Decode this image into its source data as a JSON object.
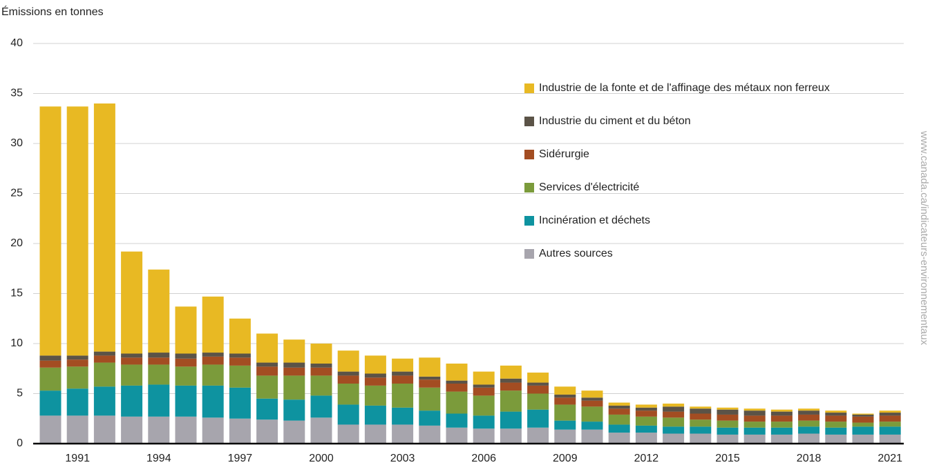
{
  "chart_data": {
    "type": "stacked_bar",
    "y_label": "Émissions en tonnes",
    "source": "www.canada.ca/indicateurs-environnementaux",
    "categories": [
      null,
      "1991",
      null,
      null,
      "1994",
      null,
      null,
      "1997",
      null,
      null,
      "2000",
      null,
      null,
      "2003",
      null,
      null,
      "2006",
      null,
      null,
      "2009",
      null,
      null,
      "2012",
      null,
      null,
      "2015",
      null,
      null,
      "2018",
      null,
      null,
      "2021"
    ],
    "ylim": [
      0,
      40
    ],
    "yticks": [
      0,
      5,
      10,
      15,
      20,
      25,
      30,
      35,
      40
    ],
    "grid": true,
    "series": [
      {
        "name": "Autres sources",
        "color": "#a7a5ad",
        "values": [
          2.8,
          2.8,
          2.8,
          2.7,
          2.7,
          2.7,
          2.6,
          2.5,
          2.4,
          2.3,
          2.6,
          1.9,
          1.9,
          1.9,
          1.8,
          1.6,
          1.5,
          1.5,
          1.6,
          1.4,
          1.4,
          1.1,
          1.1,
          1.0,
          1.0,
          0.9,
          0.9,
          0.9,
          1.0,
          0.9,
          0.9,
          0.9
        ]
      },
      {
        "name": "Incinération et déchets",
        "color": "#0e93a0",
        "values": [
          2.5,
          2.7,
          2.9,
          3.1,
          3.2,
          3.1,
          3.2,
          3.1,
          2.1,
          2.1,
          2.2,
          2.0,
          1.9,
          1.7,
          1.5,
          1.4,
          1.3,
          1.7,
          1.8,
          0.9,
          0.8,
          0.8,
          0.7,
          0.7,
          0.7,
          0.7,
          0.7,
          0.7,
          0.7,
          0.7,
          0.8,
          0.8
        ]
      },
      {
        "name": "Services d'électricité",
        "color": "#7b9b3b",
        "values": [
          2.3,
          2.2,
          2.4,
          2.1,
          2.0,
          1.9,
          2.1,
          2.2,
          2.3,
          2.4,
          2.0,
          2.1,
          2.0,
          2.4,
          2.3,
          2.2,
          2.0,
          2.1,
          1.6,
          1.6,
          1.5,
          1.0,
          0.9,
          0.9,
          0.7,
          0.7,
          0.6,
          0.6,
          0.6,
          0.6,
          0.4,
          0.5
        ]
      },
      {
        "name": "Sidérurgie",
        "color": "#a34d22",
        "values": [
          0.7,
          0.7,
          0.7,
          0.7,
          0.7,
          0.8,
          0.8,
          0.8,
          0.9,
          0.8,
          0.8,
          0.8,
          0.8,
          0.8,
          0.8,
          0.8,
          0.8,
          0.8,
          0.8,
          0.7,
          0.6,
          0.6,
          0.6,
          0.6,
          0.6,
          0.6,
          0.6,
          0.6,
          0.6,
          0.6,
          0.6,
          0.6
        ]
      },
      {
        "name": "Industrie du ciment et du béton",
        "color": "#5b5347",
        "values": [
          0.5,
          0.4,
          0.4,
          0.4,
          0.5,
          0.5,
          0.4,
          0.4,
          0.4,
          0.5,
          0.4,
          0.4,
          0.4,
          0.4,
          0.3,
          0.3,
          0.3,
          0.4,
          0.3,
          0.3,
          0.3,
          0.3,
          0.3,
          0.5,
          0.5,
          0.5,
          0.5,
          0.4,
          0.4,
          0.3,
          0.2,
          0.3
        ]
      },
      {
        "name": "Industrie de la fonte et de l'affinage des métaux non ferreux",
        "color": "#e8b923",
        "values": [
          24.9,
          24.9,
          24.8,
          10.2,
          8.3,
          4.7,
          5.6,
          3.5,
          2.9,
          2.3,
          2.0,
          2.1,
          1.8,
          1.3,
          1.9,
          1.7,
          1.3,
          1.3,
          1.0,
          0.8,
          0.7,
          0.3,
          0.3,
          0.3,
          0.2,
          0.2,
          0.2,
          0.2,
          0.2,
          0.2,
          0.1,
          0.2
        ]
      }
    ]
  }
}
